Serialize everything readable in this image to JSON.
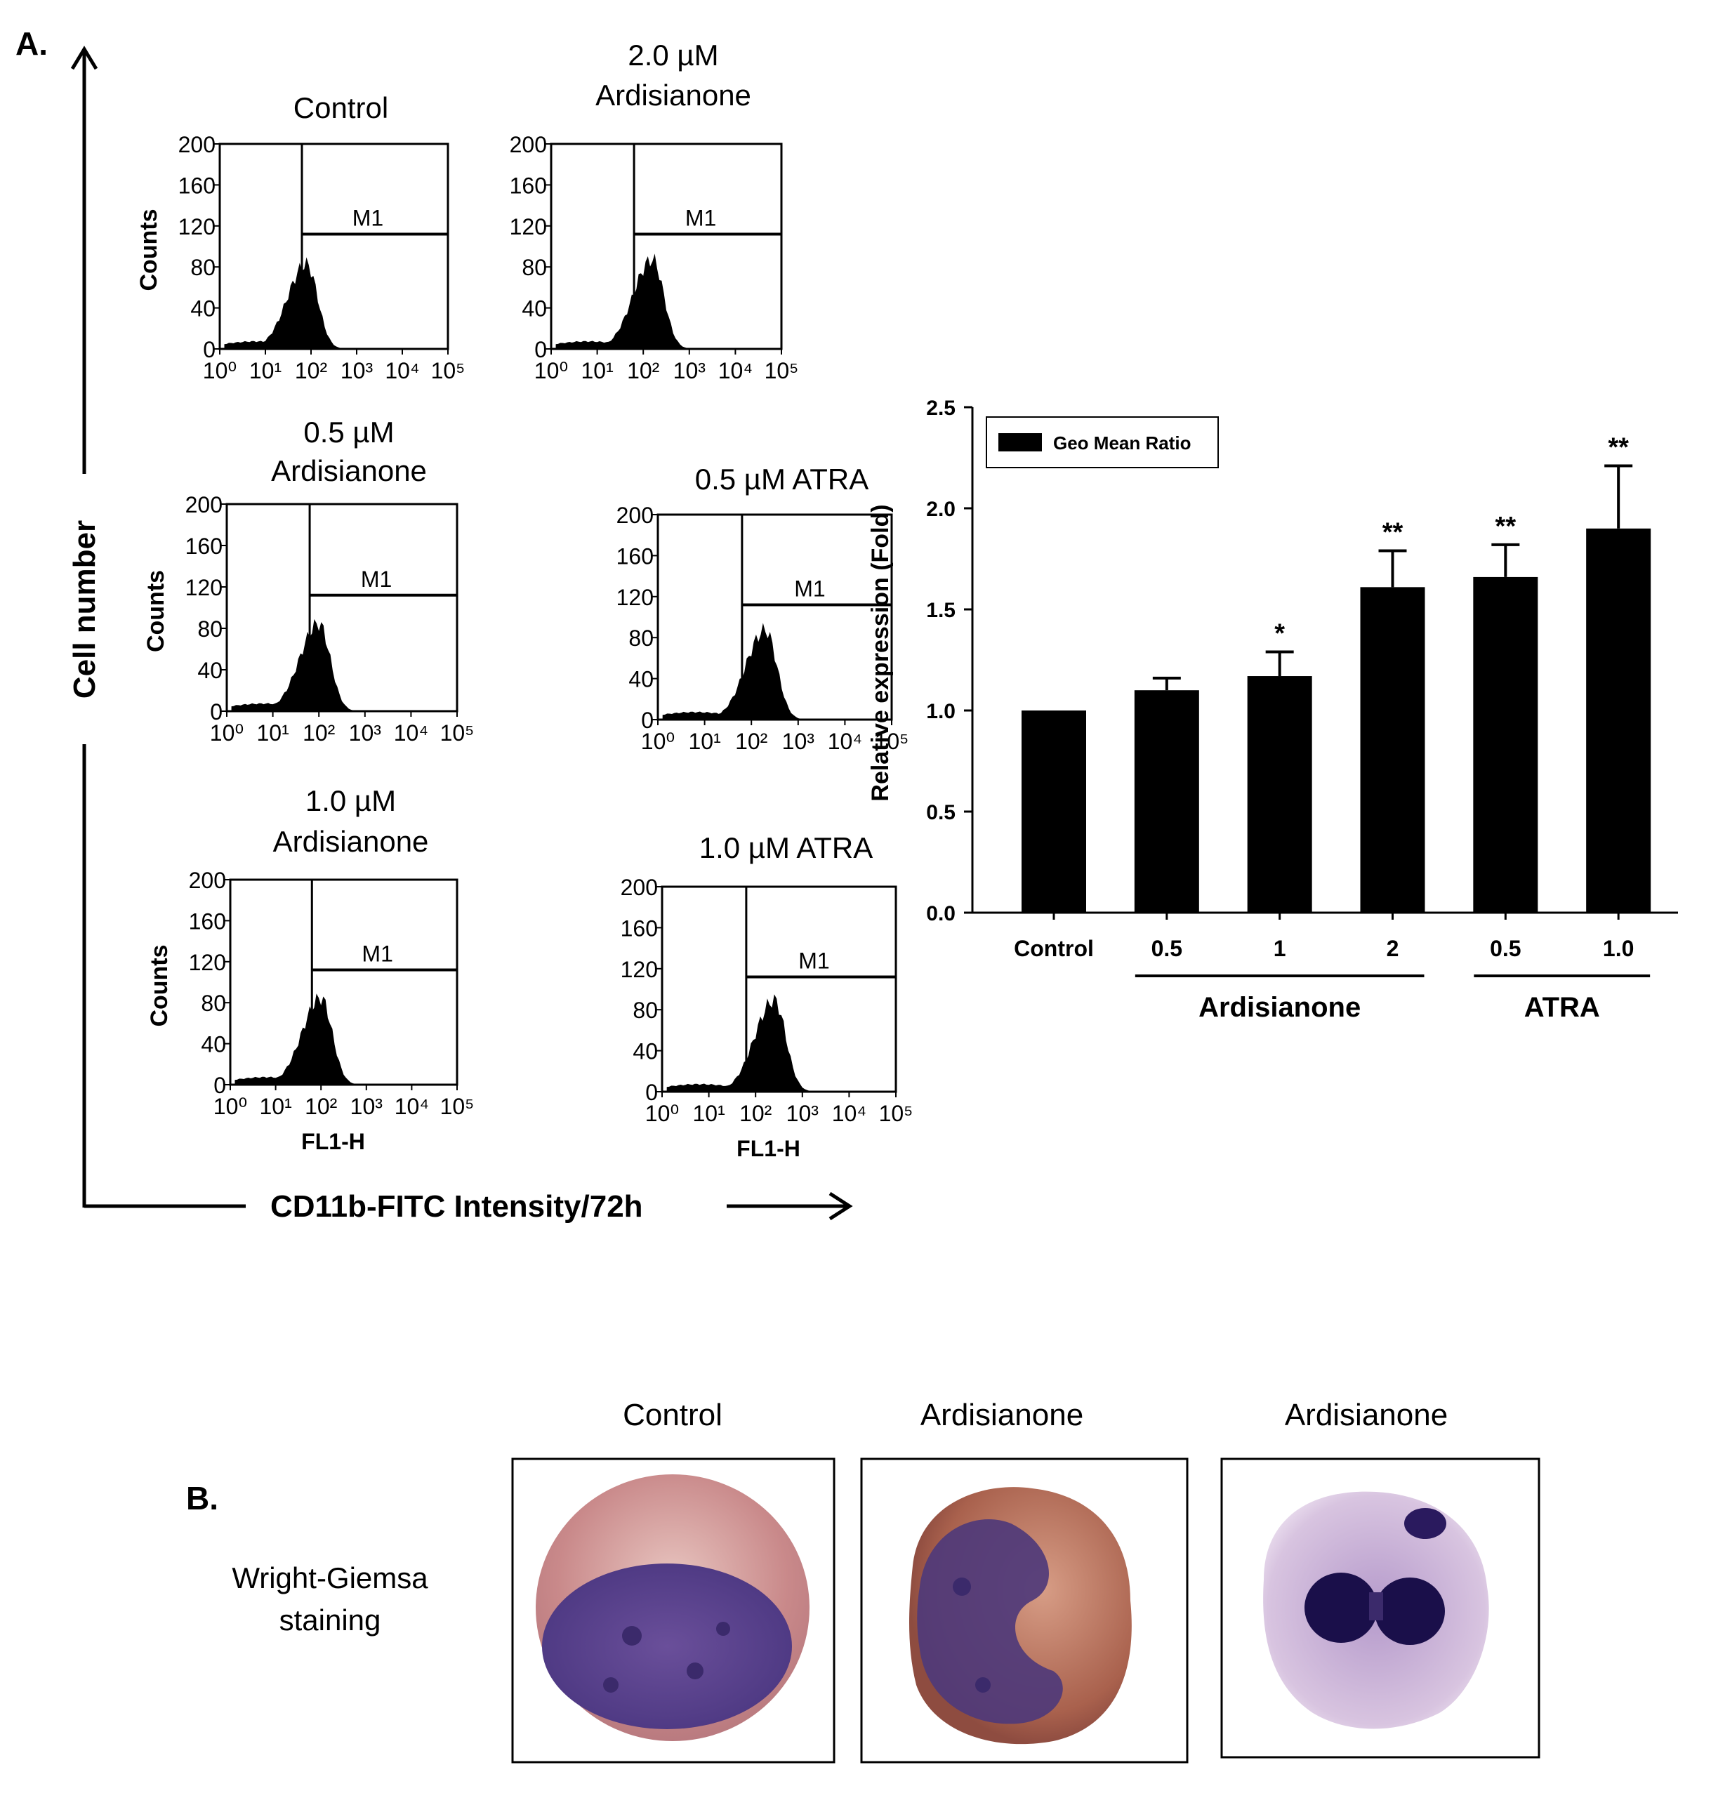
{
  "panel_a": {
    "label": "A.",
    "y_axis_label": "Cell number",
    "x_axis_label": "CD11b-FITC Intensity/72h"
  },
  "histograms": [
    {
      "title_lines": [
        "Control"
      ],
      "peak_log": 1.9,
      "peak_count": 90,
      "gate_label": "M1",
      "counts_label": "Counts",
      "xlabel": ""
    },
    {
      "title_lines": [
        "2.0 µM",
        "Ardisianone"
      ],
      "peak_log": 2.2,
      "peak_count": 95,
      "gate_label": "M1",
      "counts_label": "",
      "xlabel": ""
    },
    {
      "title_lines": [
        "0.5 µM",
        "Ardisianone"
      ],
      "peak_log": 2.0,
      "peak_count": 92,
      "gate_label": "M1",
      "counts_label": "Counts",
      "xlabel": ""
    },
    {
      "title_lines": [
        "0.5 µM ATRA"
      ],
      "peak_log": 2.3,
      "peak_count": 95,
      "gate_label": "M1",
      "counts_label": "",
      "xlabel": ""
    },
    {
      "title_lines": [
        "1.0 µM",
        "Ardisianone"
      ],
      "peak_log": 2.0,
      "peak_count": 92,
      "gate_label": "M1",
      "counts_label": "Counts",
      "xlabel": "FL1-H"
    },
    {
      "title_lines": [
        "1.0 µM ATRA"
      ],
      "peak_log": 2.4,
      "peak_count": 97,
      "gate_label": "M1",
      "counts_label": "",
      "xlabel": "FL1-H"
    }
  ],
  "histogram_axes": {
    "y_ticks": [
      "0",
      "40",
      "80",
      "120",
      "160",
      "200"
    ],
    "x_ticks": [
      "10⁰",
      "10¹",
      "10²",
      "10³",
      "10⁴",
      "10⁵"
    ],
    "ylim": [
      0,
      200
    ],
    "xlim_log": [
      0,
      5
    ],
    "gate_start_log": 1.8,
    "gate_level": 112
  },
  "chart_data": {
    "type": "bar",
    "title": "",
    "ylabel": "Relative expression (Fold)",
    "xlabel": "",
    "ylim": [
      0,
      2.5
    ],
    "y_ticks": [
      "0.0",
      "0.5",
      "1.0",
      "1.5",
      "2.0",
      "2.5"
    ],
    "categories": [
      "Control",
      "0.5",
      "1",
      "2",
      "0.5",
      "1.0"
    ],
    "groups": [
      {
        "label": "Ardisianone",
        "from": 1,
        "to": 3
      },
      {
        "label": "ATRA",
        "from": 4,
        "to": 5
      }
    ],
    "series": [
      {
        "name": "Geo Mean Ratio",
        "values": [
          1.0,
          1.1,
          1.17,
          1.61,
          1.66,
          1.9
        ],
        "errors": [
          0.0,
          0.06,
          0.12,
          0.18,
          0.16,
          0.31
        ],
        "significance": [
          "",
          "",
          "*",
          "**",
          "**",
          "**"
        ]
      }
    ],
    "legend": "top-left",
    "colors": {
      "bar": "#000000"
    }
  },
  "panel_b": {
    "label": "B.",
    "row_label_lines": [
      "Wright-Giemsa",
      "staining"
    ],
    "images": [
      {
        "title": "Control",
        "image": "cell-control"
      },
      {
        "title": "Ardisianone",
        "image": "cell-ardisianone-1"
      },
      {
        "title": "Ardisianone",
        "image": "cell-ardisianone-2"
      }
    ]
  }
}
